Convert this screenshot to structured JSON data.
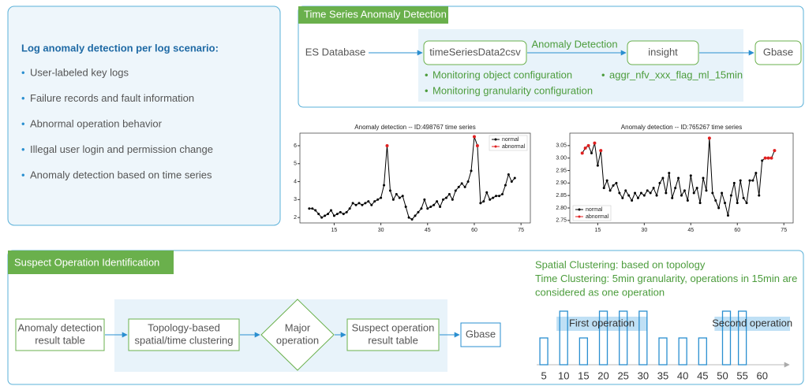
{
  "scenario_panel": {
    "title": "Log anomaly detection per log scenario:",
    "items": [
      "User-labeled key logs",
      "Failure records and fault information",
      "Abnormal operation behavior",
      "Illegal user login and permission change",
      "Anomaly detection based on time series"
    ]
  },
  "time_series_panel": {
    "title": "Time Series Anomaly Detection",
    "nodes": [
      "ES Database",
      "timeSeriesData2csv",
      "insight",
      "Gbase"
    ],
    "edge_label": "Anomaly Detection",
    "notes_left": [
      "Monitoring object configuration",
      "Monitoring granularity configuration"
    ],
    "notes_right": [
      "aggr_nfv_xxx_flag_ml_15min"
    ]
  },
  "suspect_panel": {
    "title": "Suspect Operation Identification",
    "nodes": [
      [
        "Anomaly detection",
        "result table"
      ],
      [
        "Topology-based",
        "spatial/time clustering"
      ],
      [
        "Major",
        "operation"
      ],
      [
        "Suspect operation",
        "result table"
      ],
      [
        "Gbase"
      ]
    ],
    "notes": [
      "Spatial Clustering: based on topology",
      "Time Clustering: 5min granularity,  operations in 15min are",
      "considered as one operation"
    ]
  },
  "chart_data": [
    {
      "type": "line",
      "title": "Anomaly detection -- ID:498767 time series",
      "xlim": [
        4,
        78
      ],
      "xticks": [
        15,
        30,
        45,
        60,
        75
      ],
      "ylim": [
        1.7,
        6.7
      ],
      "yticks": [
        2,
        3,
        4,
        5,
        6
      ],
      "legend": "upper right",
      "series": [
        {
          "name": "normal",
          "color": "#000000",
          "line": true,
          "x": [
            7,
            8,
            9,
            10,
            11,
            12,
            13,
            14,
            15,
            16,
            17,
            18,
            19,
            20,
            21,
            22,
            23,
            24,
            25,
            26,
            27,
            28,
            29,
            30,
            31,
            32,
            33,
            34,
            35,
            36,
            37,
            38,
            39,
            40,
            41,
            42,
            43,
            44,
            45,
            46,
            47,
            48,
            49,
            50,
            51,
            52,
            53,
            54,
            55,
            56,
            57,
            58,
            59,
            60,
            61,
            62,
            63,
            64,
            65,
            66,
            67,
            68,
            69,
            70,
            71,
            72,
            73
          ],
          "values": [
            2.5,
            2.5,
            2.4,
            2.2,
            2.0,
            2.1,
            2.2,
            2.4,
            2.1,
            2.2,
            2.3,
            2.2,
            2.3,
            2.5,
            2.8,
            2.7,
            2.8,
            2.7,
            2.8,
            2.9,
            2.7,
            2.9,
            3.0,
            3.1,
            3.8,
            6.0,
            3.5,
            3.0,
            3.3,
            3.1,
            3.2,
            2.6,
            2.0,
            1.9,
            2.1,
            2.3,
            2.5,
            3.0,
            2.5,
            2.6,
            2.7,
            2.9,
            2.6,
            3.0,
            3.1,
            3.3,
            3.0,
            3.5,
            3.7,
            3.9,
            3.7,
            4.0,
            4.6,
            6.5,
            6.0,
            2.8,
            2.9,
            3.4,
            3.0,
            3.1,
            3.2,
            3.2,
            3.3,
            3.8,
            4.4,
            4.0,
            4.2
          ]
        },
        {
          "name": "abnormal",
          "color": "#e02020",
          "line": false,
          "x": [
            32,
            60,
            61
          ],
          "values": [
            6.0,
            6.5,
            6.0
          ]
        }
      ]
    },
    {
      "type": "line",
      "title": "Anomaly detection -- ID:765267 time series",
      "xlim": [
        6,
        78
      ],
      "xticks": [
        15,
        30,
        45,
        60,
        75
      ],
      "ylim": [
        2.74,
        3.1
      ],
      "yticks": [
        2.75,
        {
          "value": 2.8,
          "label": "2.80"
        },
        2.85,
        {
          "value": 2.9,
          "label": "2.90"
        },
        2.95,
        {
          "value": 3.0,
          "label": "3.00"
        },
        3.05
      ],
      "legend": "lower left",
      "series": [
        {
          "name": "normal",
          "color": "#000000",
          "line": true,
          "x": [
            10,
            11,
            12,
            13,
            14,
            15,
            16,
            17,
            18,
            19,
            20,
            21,
            22,
            23,
            24,
            25,
            26,
            27,
            28,
            29,
            30,
            31,
            32,
            33,
            34,
            35,
            36,
            37,
            38,
            39,
            40,
            41,
            42,
            43,
            44,
            45,
            46,
            47,
            48,
            49,
            50,
            51,
            52,
            53,
            54,
            55,
            56,
            57,
            58,
            59,
            60,
            61,
            62,
            63,
            64,
            65,
            66,
            67,
            68,
            69,
            70,
            71,
            72
          ],
          "values": [
            3.02,
            3.04,
            3.05,
            3.02,
            3.06,
            2.97,
            3.03,
            2.88,
            2.91,
            2.87,
            2.89,
            2.9,
            2.86,
            2.84,
            2.87,
            2.85,
            2.83,
            2.86,
            2.84,
            2.86,
            2.85,
            2.87,
            2.86,
            2.88,
            2.85,
            2.9,
            2.92,
            2.86,
            2.94,
            2.84,
            2.88,
            2.92,
            2.85,
            2.87,
            2.83,
            2.93,
            2.86,
            2.88,
            2.82,
            2.92,
            2.87,
            3.08,
            2.86,
            2.83,
            2.8,
            2.86,
            2.82,
            2.77,
            2.85,
            2.9,
            2.82,
            2.91,
            2.84,
            2.82,
            2.91,
            2.91,
            2.94,
            2.85,
            2.99,
            3.0,
            3.0,
            3.0,
            3.03
          ]
        },
        {
          "name": "abnormal",
          "color": "#e02020",
          "line": false,
          "x": [
            10,
            11,
            12,
            14,
            16,
            51,
            69,
            70,
            71,
            72
          ],
          "values": [
            3.02,
            3.04,
            3.05,
            3.06,
            3.03,
            3.08,
            3.0,
            3.0,
            3.0,
            3.03
          ]
        }
      ]
    },
    {
      "type": "bar",
      "color": "#2a8fd0",
      "band_color": "#bfe0f5",
      "xlim": [
        3,
        67
      ],
      "xticks": [
        5,
        10,
        15,
        20,
        25,
        30,
        35,
        40,
        45,
        50,
        55,
        60
      ],
      "ylim": [
        0,
        2
      ],
      "x": [
        5,
        10,
        15,
        20,
        25,
        30,
        35,
        40,
        45,
        51,
        55
      ],
      "values": [
        1,
        2,
        1,
        2,
        2,
        2,
        1,
        1,
        1,
        2,
        2
      ],
      "bands": [
        {
          "label": "First operation",
          "start": 8.2,
          "end": 31
        },
        {
          "label": "Second operation",
          "start": 48,
          "end": 67
        }
      ]
    }
  ]
}
